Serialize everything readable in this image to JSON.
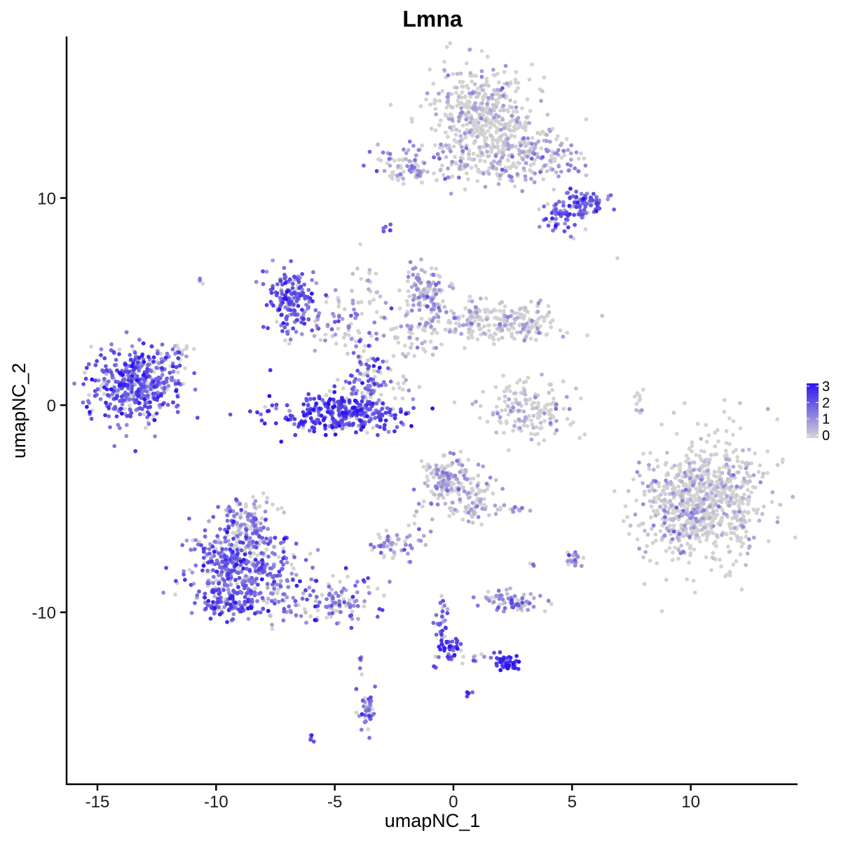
{
  "chart_data": {
    "type": "scatter",
    "title": "Lmna",
    "xlabel": "umapNC_1",
    "ylabel": "umapNC_2",
    "xlim": [
      -16.3,
      14.5
    ],
    "ylim": [
      -18.3,
      17.8
    ],
    "x_ticks": [
      -15,
      -10,
      -5,
      0,
      5,
      10
    ],
    "x_tick_labels": [
      "-15",
      "-10",
      "-5",
      "0",
      "5",
      "10"
    ],
    "y_ticks": [
      -10,
      0,
      10
    ],
    "y_tick_labels": [
      "-10",
      "0",
      "10"
    ],
    "grid": false,
    "legend": {
      "placement": "right",
      "ticks": [
        0,
        1,
        2,
        3
      ],
      "tick_labels": [
        "0",
        "1",
        "2",
        "3"
      ],
      "colors": {
        "low": "#d3d3d3",
        "high": "#2b14ef"
      }
    },
    "color_variable": "Lmna expression",
    "color_range": [
      0,
      3
    ],
    "clusters": [
      {
        "cx": 1.2,
        "cy": 14.0,
        "sx": 1.1,
        "sy": 1.2,
        "n": 450,
        "mean": 0.15
      },
      {
        "cx": 2.5,
        "cy": 12.5,
        "sx": 1.2,
        "sy": 0.7,
        "n": 120,
        "mean": 0.3
      },
      {
        "cx": -2.0,
        "cy": 11.5,
        "sx": 0.9,
        "sy": 0.5,
        "n": 90,
        "mean": 0.8
      },
      {
        "cx": 0.5,
        "cy": 11.3,
        "sx": 1.4,
        "sy": 0.3,
        "n": 50,
        "mean": 0.4
      },
      {
        "cx": 4.3,
        "cy": 11.8,
        "sx": 0.8,
        "sy": 0.5,
        "n": 70,
        "mean": 0.9
      },
      {
        "cx": 5.6,
        "cy": 9.7,
        "sx": 0.4,
        "sy": 0.35,
        "n": 80,
        "mean": 1.9
      },
      {
        "cx": 4.4,
        "cy": 9.1,
        "sx": 0.4,
        "sy": 0.35,
        "n": 50,
        "mean": 1.7
      },
      {
        "cx": -2.8,
        "cy": 8.6,
        "sx": 0.1,
        "sy": 0.1,
        "n": 6,
        "mean": 1.8
      },
      {
        "cx": -6.9,
        "cy": 5.0,
        "sx": 0.5,
        "sy": 0.8,
        "n": 180,
        "mean": 1.9
      },
      {
        "cx": -4.8,
        "cy": 4.0,
        "sx": 1.0,
        "sy": 0.6,
        "n": 60,
        "mean": 1.0
      },
      {
        "cx": -4.7,
        "cy": -0.4,
        "sx": 1.4,
        "sy": 0.45,
        "n": 300,
        "mean": 2.2
      },
      {
        "cx": -3.7,
        "cy": 1.2,
        "sx": 0.45,
        "sy": 1.1,
        "n": 120,
        "mean": 1.6
      },
      {
        "cx": -13.5,
        "cy": 1.0,
        "sx": 0.9,
        "sy": 0.9,
        "n": 420,
        "mean": 1.9
      },
      {
        "cx": -12.0,
        "cy": 1.6,
        "sx": 0.4,
        "sy": 0.6,
        "n": 40,
        "mean": 1.3
      },
      {
        "cx": -11.5,
        "cy": 2.6,
        "sx": 0.25,
        "sy": 0.2,
        "n": 12,
        "mean": 1.2
      },
      {
        "cx": -1.2,
        "cy": 5.5,
        "sx": 0.45,
        "sy": 0.6,
        "n": 120,
        "mean": 0.8
      },
      {
        "cx": 1.8,
        "cy": 4.0,
        "sx": 1.5,
        "sy": 0.45,
        "n": 260,
        "mean": 0.2
      },
      {
        "cx": -1.8,
        "cy": 3.4,
        "sx": 0.6,
        "sy": 0.8,
        "n": 60,
        "mean": 0.5
      },
      {
        "cx": -3.6,
        "cy": 5.6,
        "sx": 0.5,
        "sy": 1.0,
        "n": 30,
        "mean": 0.1
      },
      {
        "cx": 3.1,
        "cy": -0.2,
        "sx": 0.9,
        "sy": 0.7,
        "n": 160,
        "mean": 0.3
      },
      {
        "cx": -2.0,
        "cy": 0.6,
        "sx": 0.4,
        "sy": 0.5,
        "n": 12,
        "mean": 0.5
      },
      {
        "cx": 7.8,
        "cy": 0.4,
        "sx": 0.1,
        "sy": 0.4,
        "n": 12,
        "mean": 0.2
      },
      {
        "cx": 10.6,
        "cy": -4.6,
        "sx": 1.3,
        "sy": 1.5,
        "n": 750,
        "mean": 0.12
      },
      {
        "cx": 9.5,
        "cy": -5.5,
        "sx": 0.7,
        "sy": 1.0,
        "n": 80,
        "mean": 0.6
      },
      {
        "cx": -0.2,
        "cy": -3.6,
        "sx": 0.55,
        "sy": 0.6,
        "n": 160,
        "mean": 0.6
      },
      {
        "cx": 0.8,
        "cy": -4.8,
        "sx": 0.7,
        "sy": 0.5,
        "n": 70,
        "mean": 0.4
      },
      {
        "cx": -8.9,
        "cy": -7.9,
        "sx": 1.2,
        "sy": 1.1,
        "n": 520,
        "mean": 1.6
      },
      {
        "cx": -8.7,
        "cy": -5.6,
        "sx": 0.5,
        "sy": 0.6,
        "n": 90,
        "mean": 1.0
      },
      {
        "cx": -9.6,
        "cy": -9.6,
        "sx": 0.6,
        "sy": 0.3,
        "n": 80,
        "mean": 1.9
      },
      {
        "cx": -5.2,
        "cy": -9.5,
        "sx": 1.1,
        "sy": 0.55,
        "n": 120,
        "mean": 1.4
      },
      {
        "cx": -2.7,
        "cy": -6.8,
        "sx": 0.4,
        "sy": 0.3,
        "n": 40,
        "mean": 1.2
      },
      {
        "cx": -1.5,
        "cy": -6.0,
        "sx": 0.4,
        "sy": 0.6,
        "n": 12,
        "mean": 1.0
      },
      {
        "cx": 2.5,
        "cy": -9.5,
        "sx": 0.6,
        "sy": 0.25,
        "n": 70,
        "mean": 1.0
      },
      {
        "cx": 2.3,
        "cy": -12.5,
        "sx": 0.25,
        "sy": 0.2,
        "n": 40,
        "mean": 2.6
      },
      {
        "cx": -0.2,
        "cy": -11.7,
        "sx": 0.3,
        "sy": 0.3,
        "n": 40,
        "mean": 2.2
      },
      {
        "cx": -0.5,
        "cy": -10.2,
        "sx": 0.15,
        "sy": 0.5,
        "n": 25,
        "mean": 1.8
      },
      {
        "cx": 1.2,
        "cy": -12.2,
        "sx": 0.5,
        "sy": 0.15,
        "n": 15,
        "mean": 1.8
      },
      {
        "cx": -3.6,
        "cy": -14.8,
        "sx": 0.2,
        "sy": 0.5,
        "n": 45,
        "mean": 1.5
      },
      {
        "cx": -3.9,
        "cy": -12.5,
        "sx": 0.1,
        "sy": 0.3,
        "n": 5,
        "mean": 1.5
      },
      {
        "cx": 5.0,
        "cy": -7.4,
        "sx": 0.2,
        "sy": 0.2,
        "n": 20,
        "mean": 1.0
      },
      {
        "cx": 2.8,
        "cy": -5.0,
        "sx": 0.2,
        "sy": 0.1,
        "n": 8,
        "mean": 1.1
      },
      {
        "cx": 3.3,
        "cy": -7.6,
        "sx": 0.1,
        "sy": 0.1,
        "n": 3,
        "mean": 0.7
      },
      {
        "cx": 0.6,
        "cy": -14.0,
        "sx": 0.1,
        "sy": 0.1,
        "n": 5,
        "mean": 2.0
      },
      {
        "cx": -6.0,
        "cy": -16.0,
        "sx": 0.1,
        "sy": 0.1,
        "n": 5,
        "mean": 1.8
      },
      {
        "cx": -10.6,
        "cy": 6.1,
        "sx": 0.1,
        "sy": 0.1,
        "n": 4,
        "mean": 1.5
      },
      {
        "cx": 6.8,
        "cy": 7.1,
        "sx": 0.05,
        "sy": 0.05,
        "n": 1,
        "mean": 0.0
      },
      {
        "cx": 5.0,
        "cy": 8.1,
        "sx": 0.05,
        "sy": 0.05,
        "n": 1,
        "mean": 0.0
      },
      {
        "cx": -1.8,
        "cy": -7.5,
        "sx": 0.1,
        "sy": 0.1,
        "n": 3,
        "mean": 0.8
      }
    ]
  }
}
